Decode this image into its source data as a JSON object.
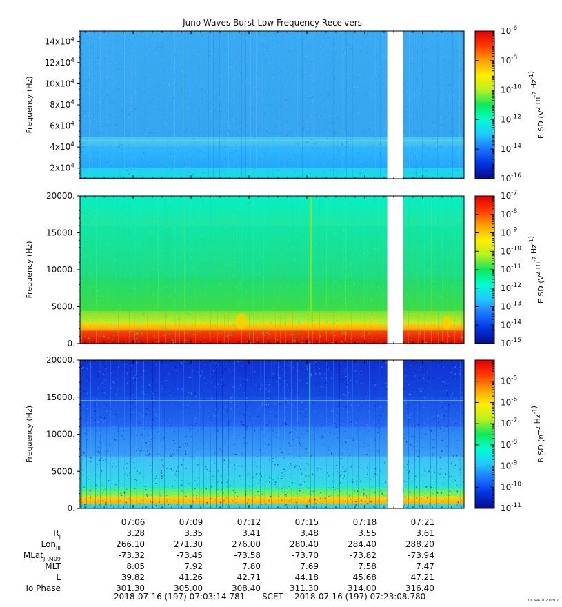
{
  "title": "Juno Waves Burst Low Frequency Receivers",
  "footer": {
    "start": "2018-07-16 (197) 07:03:14.781",
    "scet": "SCET",
    "end": "2018-07-16 (197) 07:23:08.780",
    "stamp": "UIOWA 20200307"
  },
  "colors": {
    "background": "#ffffff",
    "data_gap": "#ffffff",
    "colormap": [
      "#0a0a8c",
      "#0033dd",
      "#1a74ff",
      "#22c8ff",
      "#00ffd0",
      "#10e85a",
      "#b8f020",
      "#ffee00",
      "#ffa000",
      "#ff3a00",
      "#e00000"
    ]
  },
  "chart_data": [
    {
      "type": "heatmap",
      "title": "Juno Waves Burst Low Frequency Receivers",
      "ylabel": "Frequency (Hz)",
      "ylim": [
        10000,
        150000
      ],
      "yticks": [
        "2x10^4",
        "4x10^4",
        "6x10^4",
        "8x10^4",
        "10x10^4",
        "12x10^4",
        "14x10^4"
      ],
      "yticks_values": [
        20000,
        40000,
        60000,
        80000,
        100000,
        120000,
        140000
      ],
      "colorbar": {
        "label": "E SD (V^2 m^-2 Hz^-1)",
        "scale": "log",
        "range": [
          1e-16,
          1e-06
        ],
        "ticks": [
          -6,
          -8,
          -10,
          -12,
          -14,
          -16
        ]
      },
      "dominant_level": "1e-14",
      "data_gap": [
        "07:19:10",
        "07:20:00"
      ]
    },
    {
      "type": "heatmap",
      "ylabel": "Frequency (Hz)",
      "ylim": [
        0,
        20000
      ],
      "yticks": [
        "0.",
        "5000.",
        "10000.",
        "15000.",
        "20000."
      ],
      "yticks_values": [
        0,
        5000,
        10000,
        15000,
        20000
      ],
      "colorbar": {
        "label": "E SD (V^2 m^-2 Hz^-1)",
        "scale": "log",
        "range": [
          1e-15,
          1e-07
        ],
        "ticks": [
          -7,
          -8,
          -9,
          -10,
          -11,
          -12,
          -13,
          -14,
          -15
        ]
      },
      "dominant_level": "1e-12",
      "data_gap": [
        "07:19:10",
        "07:20:00"
      ]
    },
    {
      "type": "heatmap",
      "ylabel": "Frequency (Hz)",
      "ylim": [
        0,
        20000
      ],
      "yticks": [
        "0.",
        "5000.",
        "10000.",
        "15000.",
        "20000."
      ],
      "yticks_values": [
        0,
        5000,
        10000,
        15000,
        20000
      ],
      "colorbar": {
        "label": "B SD (nT^2 Hz^-1)",
        "scale": "log",
        "range": [
          1e-11,
          0.0001
        ],
        "ticks": [
          -5,
          -6,
          -7,
          -8,
          -9,
          -10,
          -11
        ]
      },
      "dominant_level": "1e-10",
      "data_gap": [
        "07:19:10",
        "07:20:00"
      ]
    }
  ],
  "time_axis": {
    "start": "07:03:14.781",
    "end": "07:23:08.780",
    "ticks": [
      "07:06",
      "07:09",
      "07:12",
      "07:15",
      "07:18",
      "07:21"
    ]
  },
  "ephemeris": [
    {
      "label": "R",
      "sub": "J",
      "values": [
        "3.28",
        "3.35",
        "3.41",
        "3.48",
        "3.55",
        "3.61"
      ]
    },
    {
      "label": "Lon",
      "sub": "III",
      "values": [
        "266.10",
        "271.30",
        "276.00",
        "280.40",
        "284.40",
        "288.20"
      ]
    },
    {
      "label": "MLat",
      "sub": "JRM09",
      "values": [
        "-73.32",
        "-73.45",
        "-73.58",
        "-73.70",
        "-73.82",
        "-73.94"
      ]
    },
    {
      "label": "MLT",
      "sub": "",
      "values": [
        "8.05",
        "7.92",
        "7.80",
        "7.69",
        "7.58",
        "7.47"
      ]
    },
    {
      "label": "L",
      "sub": "",
      "values": [
        "39.82",
        "41.26",
        "42.71",
        "44.18",
        "45.68",
        "47.21"
      ]
    },
    {
      "label": "Io Phase",
      "sub": "",
      "values": [
        "301.30",
        "305.00",
        "308.40",
        "311.30",
        "314.00",
        "316.40"
      ]
    }
  ]
}
